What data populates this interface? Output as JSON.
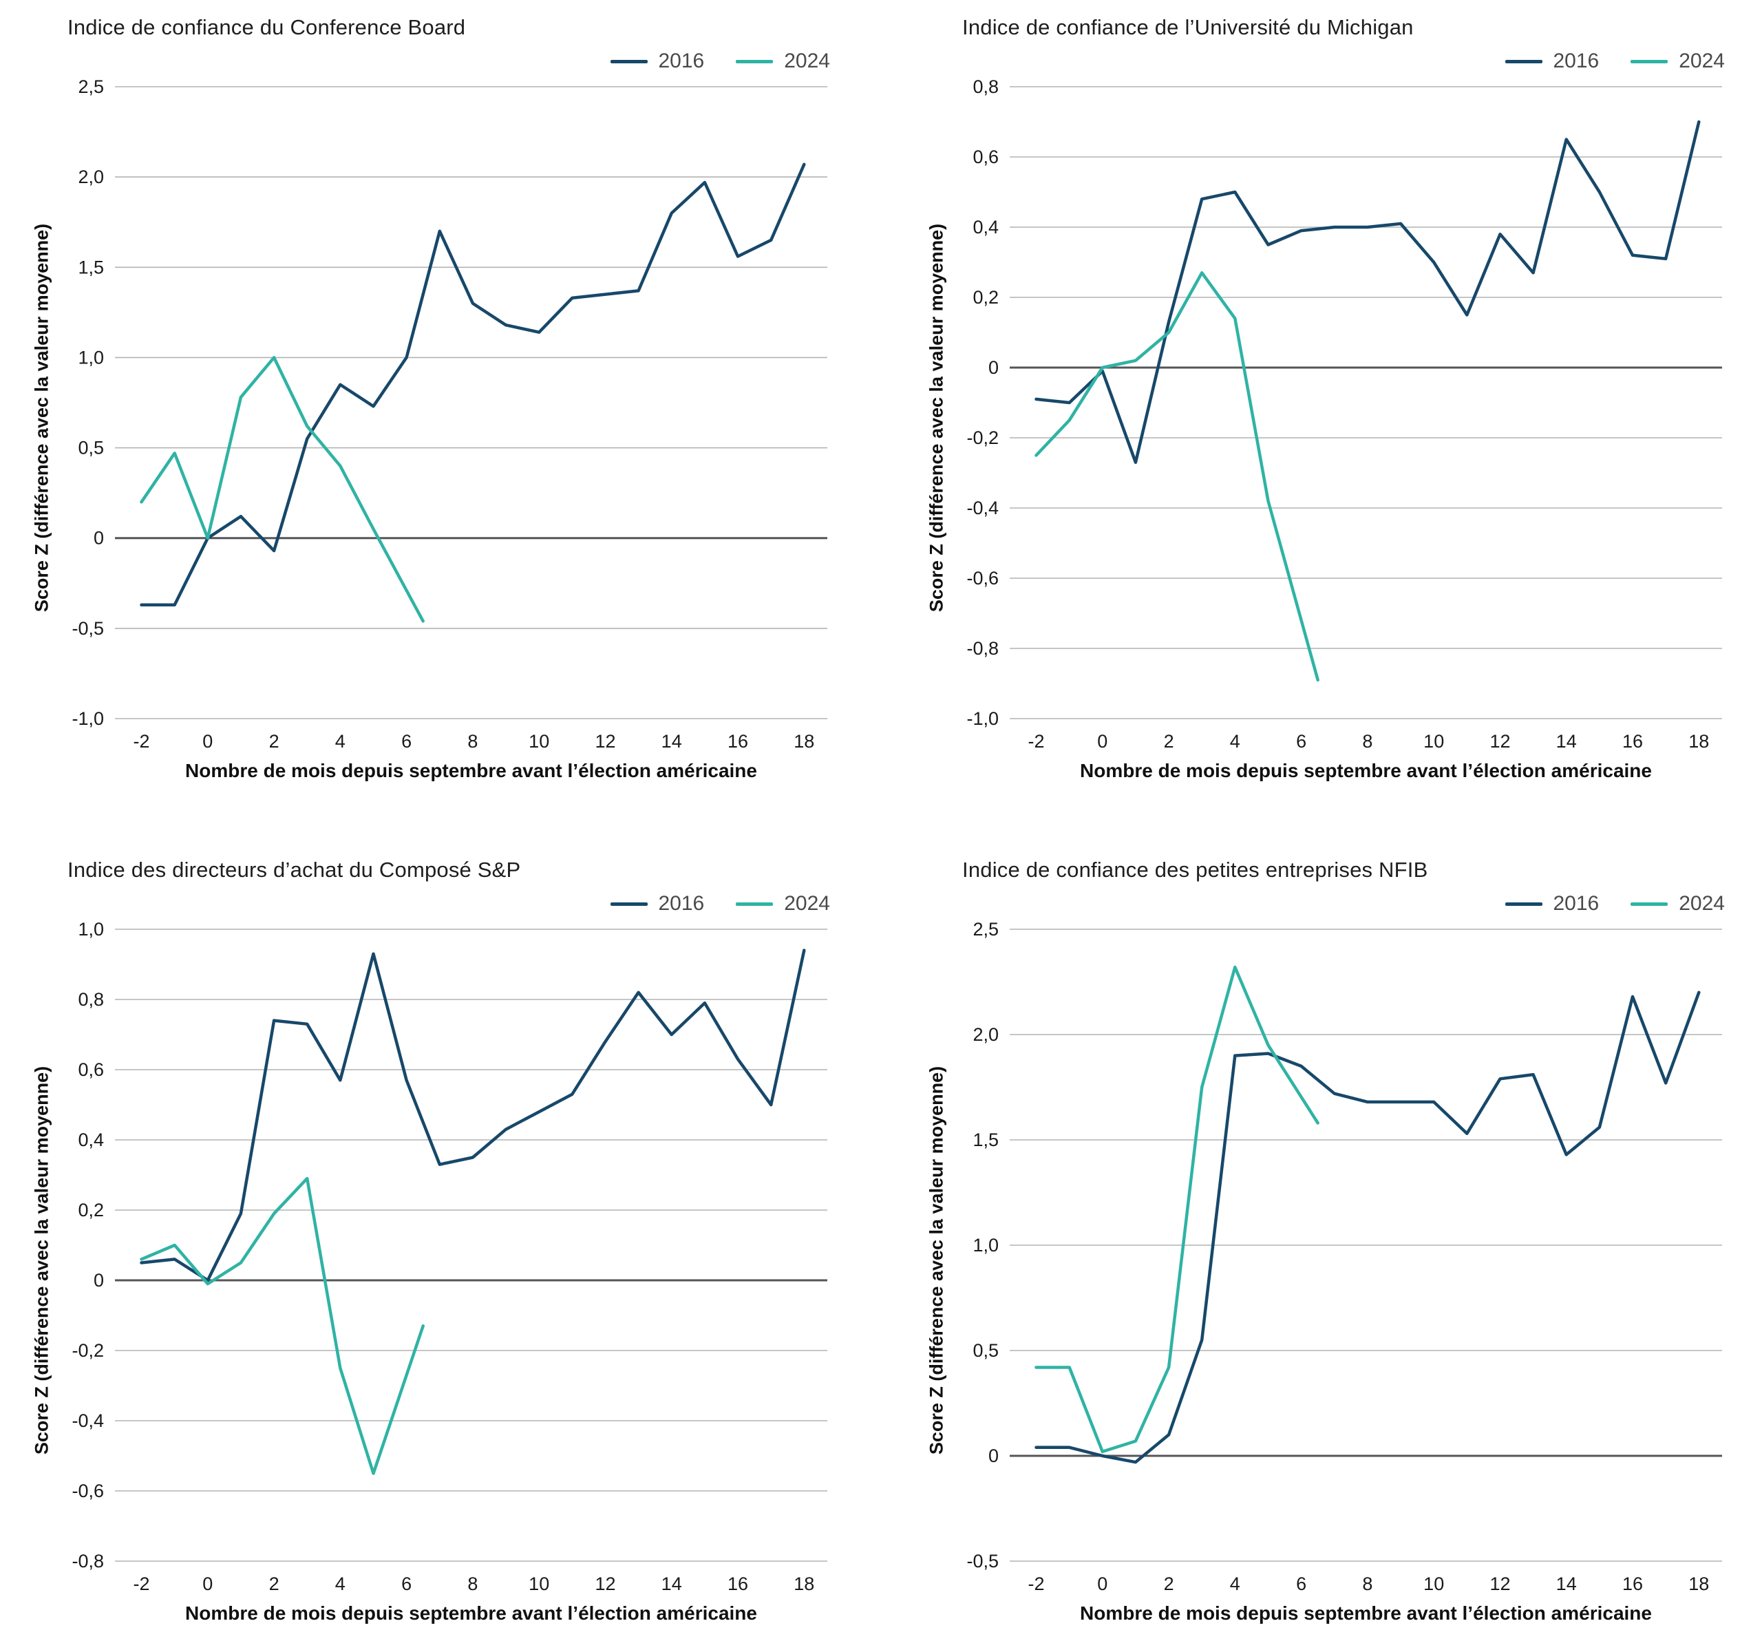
{
  "colors": {
    "series_2016": "#17486A",
    "series_2024": "#2FB3A4",
    "grid": "#b3b3b3",
    "zero_line": "#55565a",
    "tick_text": "#1a1a1a",
    "title_text": "#1e1e1e",
    "legend_text": "#4a4a4a"
  },
  "chart_data": [
    {
      "type": "line",
      "title": "Indice de confiance du Conference Board",
      "ylabel": "Score Z (différence avec la valeur moyenne)",
      "xlabel": "Nombre de mois depuis septembre avant l’élection américaine",
      "ylim": [
        -1.0,
        2.5
      ],
      "ytick_step": 0.5,
      "xticks": [
        -2,
        0,
        2,
        4,
        6,
        8,
        10,
        12,
        14,
        16,
        18
      ],
      "grid": "horizontal",
      "legend_position": "top-right",
      "series": [
        {
          "name": "2016",
          "color": "#17486A",
          "x": [
            -2,
            -1,
            0,
            1,
            2,
            3,
            4,
            5,
            6,
            7,
            8,
            9,
            10,
            11,
            12,
            13,
            14,
            15,
            16,
            17,
            18
          ],
          "values": [
            -0.37,
            -0.37,
            0.0,
            0.12,
            -0.07,
            0.55,
            0.85,
            0.73,
            1.0,
            1.7,
            1.3,
            1.18,
            1.14,
            1.33,
            1.35,
            1.37,
            1.8,
            1.97,
            1.56,
            1.65,
            2.07
          ]
        },
        {
          "name": "2024",
          "color": "#2FB3A4",
          "x": [
            -2,
            -1,
            0,
            1,
            2,
            3,
            4,
            5,
            6.5
          ],
          "values": [
            0.2,
            0.47,
            0.0,
            0.78,
            1.0,
            0.62,
            0.4,
            0.05,
            -0.46
          ]
        }
      ]
    },
    {
      "type": "line",
      "title": "Indice de confiance de l’Université du Michigan",
      "ylabel": "Score Z (différence avec la valeur moyenne)",
      "xlabel": "Nombre de mois depuis septembre avant l’élection américaine",
      "ylim": [
        -1.0,
        0.8
      ],
      "ytick_step": 0.2,
      "xticks": [
        -2,
        0,
        2,
        4,
        6,
        8,
        10,
        12,
        14,
        16,
        18
      ],
      "grid": "horizontal",
      "legend_position": "top-right",
      "series": [
        {
          "name": "2016",
          "color": "#17486A",
          "x": [
            -2,
            -1,
            0,
            1,
            2,
            3,
            4,
            5,
            6,
            7,
            8,
            9,
            10,
            11,
            12,
            13,
            14,
            15,
            16,
            17,
            18
          ],
          "values": [
            -0.09,
            -0.1,
            -0.01,
            -0.27,
            0.13,
            0.48,
            0.5,
            0.35,
            0.39,
            0.4,
            0.4,
            0.41,
            0.3,
            0.15,
            0.38,
            0.27,
            0.65,
            0.5,
            0.32,
            0.31,
            0.7
          ]
        },
        {
          "name": "2024",
          "color": "#2FB3A4",
          "x": [
            -2,
            -1,
            0,
            1,
            2,
            3,
            4,
            5,
            6.5
          ],
          "values": [
            -0.25,
            -0.15,
            0.0,
            0.02,
            0.1,
            0.27,
            0.14,
            -0.38,
            -0.89
          ]
        }
      ]
    },
    {
      "type": "line",
      "title": "Indice des directeurs d’achat du Composé S&P",
      "ylabel": "Score Z (différence avec la valeur moyenne)",
      "xlabel": "Nombre de mois depuis septembre avant l’élection américaine",
      "ylim": [
        -0.8,
        1.0
      ],
      "ytick_step": 0.2,
      "xticks": [
        -2,
        0,
        2,
        4,
        6,
        8,
        10,
        12,
        14,
        16,
        18
      ],
      "grid": "horizontal",
      "legend_position": "top-right",
      "series": [
        {
          "name": "2016",
          "color": "#17486A",
          "x": [
            -2,
            -1,
            0,
            1,
            2,
            3,
            4,
            5,
            6,
            7,
            8,
            9,
            10,
            11,
            12,
            13,
            14,
            15,
            16,
            17,
            18
          ],
          "values": [
            0.05,
            0.06,
            0.0,
            0.19,
            0.74,
            0.73,
            0.57,
            0.93,
            0.57,
            0.33,
            0.35,
            0.43,
            0.48,
            0.53,
            0.68,
            0.82,
            0.7,
            0.79,
            0.63,
            0.5,
            0.94
          ]
        },
        {
          "name": "2024",
          "color": "#2FB3A4",
          "x": [
            -2,
            -1,
            0,
            1,
            2,
            3,
            4,
            5,
            6.5
          ],
          "values": [
            0.06,
            0.1,
            -0.01,
            0.05,
            0.19,
            0.29,
            -0.25,
            -0.55,
            -0.13
          ]
        }
      ]
    },
    {
      "type": "line",
      "title": "Indice de confiance des petites entreprises NFIB",
      "ylabel": "Score Z (différence avec la valeur moyenne)",
      "xlabel": "Nombre de mois depuis septembre avant l’élection américaine",
      "ylim": [
        -0.5,
        2.5
      ],
      "ytick_step": 0.5,
      "xticks": [
        -2,
        0,
        2,
        4,
        6,
        8,
        10,
        12,
        14,
        16,
        18
      ],
      "grid": "horizontal",
      "legend_position": "top-right",
      "series": [
        {
          "name": "2016",
          "color": "#17486A",
          "x": [
            -2,
            -1,
            0,
            1,
            2,
            3,
            4,
            5,
            6,
            7,
            8,
            9,
            10,
            11,
            12,
            13,
            14,
            15,
            16,
            17,
            18
          ],
          "values": [
            0.04,
            0.04,
            0.0,
            -0.03,
            0.1,
            0.55,
            1.9,
            1.91,
            1.85,
            1.72,
            1.68,
            1.68,
            1.68,
            1.53,
            1.79,
            1.81,
            1.43,
            1.56,
            2.18,
            1.77,
            2.2
          ]
        },
        {
          "name": "2024",
          "color": "#2FB3A4",
          "x": [
            -2,
            -1,
            0,
            1,
            2,
            3,
            4,
            5,
            6.5
          ],
          "values": [
            0.42,
            0.42,
            0.02,
            0.07,
            0.42,
            1.75,
            2.32,
            1.95,
            1.58
          ]
        }
      ]
    }
  ]
}
